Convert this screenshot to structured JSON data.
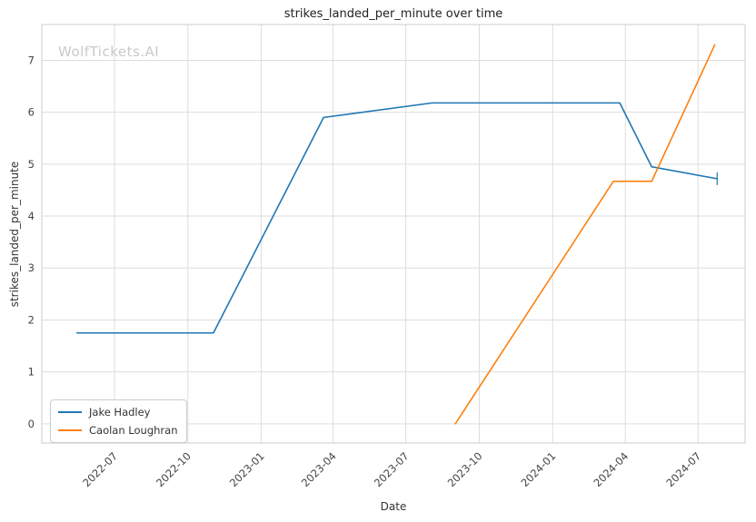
{
  "watermark": "WolfTickets.AI",
  "chart_data": {
    "type": "line",
    "title": "strikes_landed_per_minute over time",
    "xlabel": "Date",
    "ylabel": "strikes_landed_per_minute",
    "xticklabels": [
      "2022-07",
      "2022-10",
      "2023-01",
      "2023-04",
      "2023-07",
      "2023-10",
      "2024-01",
      "2024-04",
      "2024-07"
    ],
    "yticks": [
      0,
      1,
      2,
      3,
      4,
      5,
      6,
      7
    ],
    "xlim": [
      "2022-04-01",
      "2024-08-29"
    ],
    "ylim": [
      -0.37,
      7.69
    ],
    "grid": true,
    "legend_position": "lower left",
    "series": [
      {
        "name": "Jake Hadley",
        "color": "#1f77b4",
        "end_tick": true,
        "x": [
          "2022-05-15",
          "2022-11-02",
          "2023-03-20",
          "2023-08-03",
          "2024-03-25",
          "2024-05-04",
          "2024-07-25"
        ],
        "y": [
          1.75,
          1.75,
          5.9,
          6.18,
          6.18,
          4.95,
          4.72
        ]
      },
      {
        "name": "Caolan Loughran",
        "color": "#ff7f0e",
        "end_tick": false,
        "x": [
          "2023-09-01",
          "2024-03-17",
          "2024-05-04",
          "2024-07-22"
        ],
        "y": [
          0.0,
          4.67,
          4.67,
          7.3
        ]
      }
    ]
  }
}
